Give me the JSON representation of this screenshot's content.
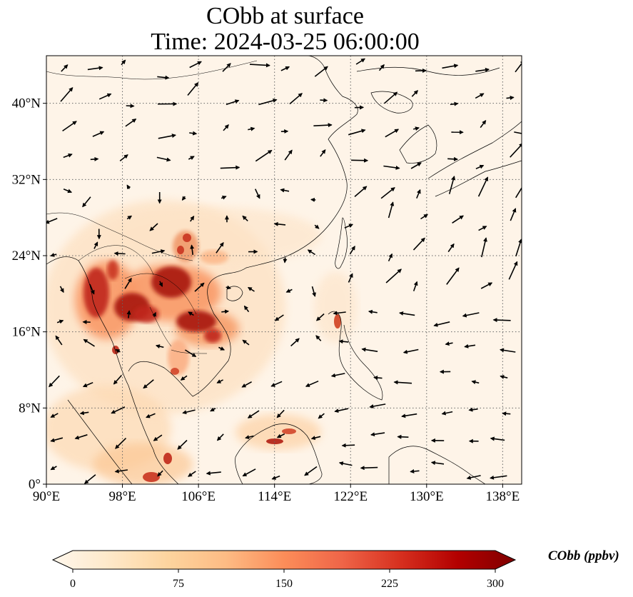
{
  "title": {
    "line1": "CObb at surface",
    "line2": "Time: 2024-03-25 06:00:00"
  },
  "map": {
    "variable": "CObb",
    "level": "surface",
    "time": "2024-03-25 06:00:00",
    "extent": {
      "lon": [
        90,
        140
      ],
      "lat": [
        0,
        45
      ]
    },
    "gridlines": "dotted",
    "lon_ticks": [
      {
        "value": 90,
        "label": "90°E"
      },
      {
        "value": 98,
        "label": "98°E"
      },
      {
        "value": 106,
        "label": "106°E"
      },
      {
        "value": 114,
        "label": "114°E"
      },
      {
        "value": 122,
        "label": "122°E"
      },
      {
        "value": 130,
        "label": "130°E"
      },
      {
        "value": 138,
        "label": "138°E"
      }
    ],
    "lat_ticks": [
      {
        "value": 0,
        "label": "0°"
      },
      {
        "value": 8,
        "label": "8°N"
      },
      {
        "value": 16,
        "label": "16°N"
      },
      {
        "value": 24,
        "label": "24°N"
      },
      {
        "value": 32,
        "label": "32°N"
      },
      {
        "value": 40,
        "label": "40°N"
      }
    ],
    "overlay": "wind vectors (black arrows)",
    "hotspots": [
      {
        "region": "Myanmar / northern Thailand",
        "lon": 97.5,
        "lat": 19.5,
        "intensity": "high"
      },
      {
        "region": "northern Laos",
        "lon": 102.5,
        "lat": 20.5,
        "intensity": "high"
      },
      {
        "region": "central Laos / Vietnam",
        "lon": 106.5,
        "lat": 17.0,
        "intensity": "high"
      },
      {
        "region": "Yunnan",
        "lon": 104.0,
        "lat": 25.0,
        "intensity": "medium"
      },
      {
        "region": "Luzon",
        "lon": 121.0,
        "lat": 17.0,
        "intensity": "medium"
      },
      {
        "region": "Borneo (Sarawak)",
        "lon": 114.5,
        "lat": 4.5,
        "intensity": "high"
      },
      {
        "region": "Sumatra",
        "lon": 102.5,
        "lat": 1.5,
        "intensity": "high"
      }
    ]
  },
  "colorbar": {
    "label": "CObb (ppbv)",
    "min": 0,
    "max": 300,
    "extend": "both",
    "colormap": "OrRd",
    "colors": [
      "#fff7ec",
      "#fee8c8",
      "#fdd49e",
      "#fdbb84",
      "#fc8d59",
      "#ef6548",
      "#d7301f",
      "#b30000",
      "#7f0000"
    ],
    "ticks": [
      {
        "value": 0,
        "label": "0"
      },
      {
        "value": 75,
        "label": "75"
      },
      {
        "value": 150,
        "label": "150"
      },
      {
        "value": 225,
        "label": "225"
      },
      {
        "value": 300,
        "label": "300"
      }
    ]
  }
}
